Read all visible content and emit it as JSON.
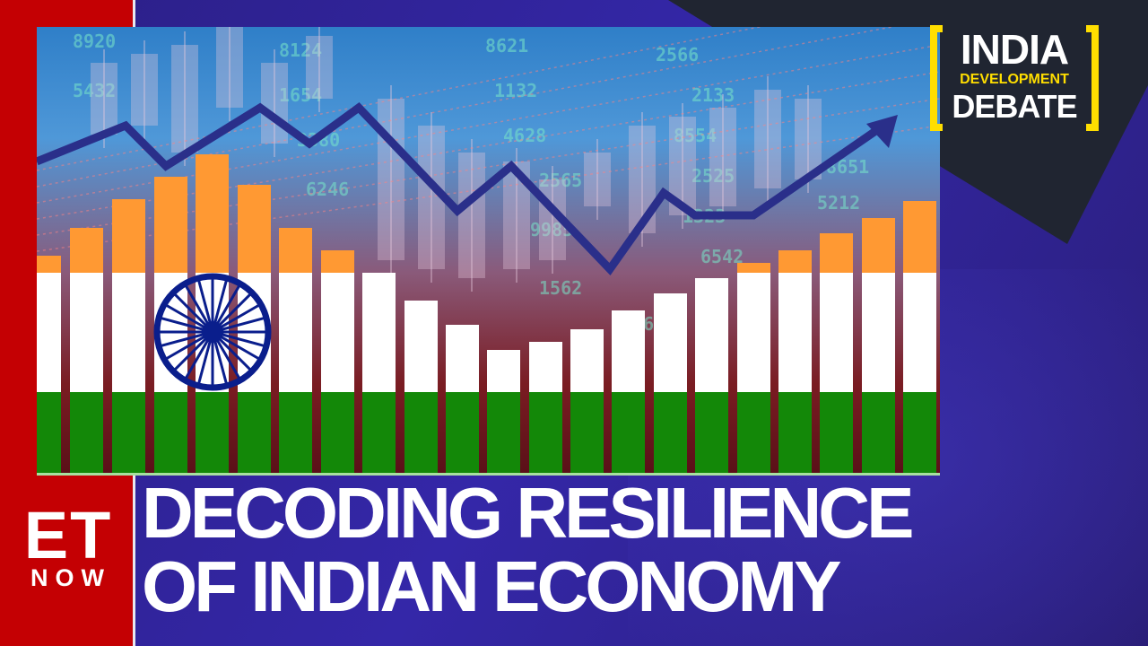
{
  "brand": {
    "channel_logo": {
      "line1": "ET",
      "line2": "NOW"
    },
    "show_logo": {
      "line1": "INDIA",
      "line2": "DEVELOPMENT",
      "line3": "DEBATE"
    }
  },
  "headline": {
    "line1": "DECODING RESILIENCE",
    "line2": "OF INDIAN ECONOMY"
  },
  "background_numbers": [
    "8920",
    "5432",
    "8124",
    "8621",
    "2566",
    "1654",
    "1132",
    "2133",
    "3380",
    "4628",
    "8554",
    "6246",
    "2565",
    "2525",
    "9985",
    "1323",
    "6542",
    "1562",
    "2456",
    "8651",
    "5212"
  ],
  "colors": {
    "saffron": "#ff9933",
    "white": "#ffffff",
    "green": "#138808",
    "chakra_blue": "#0a1e8c",
    "channel_red": "#c40003",
    "logo_yellow": "#ffde00",
    "background_purple": "#3427a8"
  }
}
